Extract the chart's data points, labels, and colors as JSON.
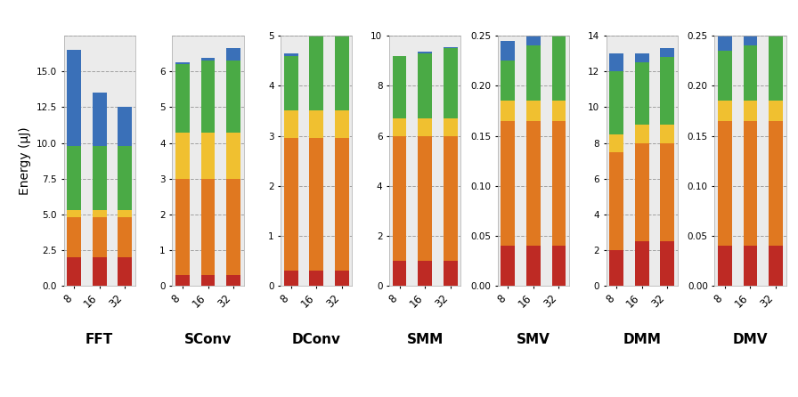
{
  "workloads": [
    "FFT",
    "SConv",
    "DConv",
    "SMM",
    "SMV",
    "DMM",
    "DMV"
  ],
  "x_labels": [
    "8",
    "16",
    "32"
  ],
  "colors": {
    "red": "#be2a24",
    "orange": "#e07820",
    "yellow": "#f0c030",
    "green": "#4aaa45",
    "blue": "#3a70b8"
  },
  "data": {
    "FFT": {
      "red": [
        2.0,
        2.0,
        2.0
      ],
      "orange": [
        2.8,
        2.8,
        2.8
      ],
      "yellow": [
        0.5,
        0.5,
        0.5
      ],
      "green": [
        4.5,
        4.5,
        4.5
      ],
      "blue": [
        6.7,
        3.7,
        2.7
      ]
    },
    "SConv": {
      "red": [
        0.3,
        0.3,
        0.3
      ],
      "orange": [
        2.7,
        2.7,
        2.7
      ],
      "yellow": [
        1.3,
        1.3,
        1.3
      ],
      "green": [
        1.9,
        2.0,
        2.0
      ],
      "blue": [
        0.05,
        0.07,
        0.35
      ]
    },
    "DConv": {
      "red": [
        0.3,
        0.3,
        0.3
      ],
      "orange": [
        2.65,
        2.65,
        2.65
      ],
      "yellow": [
        0.55,
        0.55,
        0.55
      ],
      "green": [
        1.1,
        1.55,
        1.55
      ],
      "blue": [
        0.05,
        0.05,
        0.1
      ]
    },
    "SMM": {
      "red": [
        1.0,
        1.0,
        1.0
      ],
      "orange": [
        5.0,
        5.0,
        5.0
      ],
      "yellow": [
        0.7,
        0.7,
        0.7
      ],
      "green": [
        2.5,
        2.6,
        2.8
      ],
      "blue": [
        0.0,
        0.05,
        0.05
      ]
    },
    "SMV": {
      "red": [
        0.04,
        0.04,
        0.04
      ],
      "orange": [
        0.125,
        0.125,
        0.125
      ],
      "yellow": [
        0.02,
        0.02,
        0.02
      ],
      "green": [
        0.04,
        0.055,
        0.065
      ],
      "blue": [
        0.02,
        0.025,
        0.045
      ]
    },
    "DMM": {
      "red": [
        2.0,
        2.5,
        2.5
      ],
      "orange": [
        5.5,
        5.5,
        5.5
      ],
      "yellow": [
        1.0,
        1.0,
        1.0
      ],
      "green": [
        3.5,
        3.5,
        3.8
      ],
      "blue": [
        1.0,
        0.5,
        0.5
      ]
    },
    "DMV": {
      "red": [
        0.04,
        0.04,
        0.04
      ],
      "orange": [
        0.125,
        0.125,
        0.125
      ],
      "yellow": [
        0.02,
        0.02,
        0.02
      ],
      "green": [
        0.05,
        0.055,
        0.065
      ],
      "blue": [
        0.02,
        0.025,
        0.045
      ]
    }
  },
  "ylims": {
    "FFT": [
      0,
      17.5
    ],
    "SConv": [
      0,
      7.0
    ],
    "DConv": [
      0,
      5.0
    ],
    "SMM": [
      0,
      10.0
    ],
    "SMV": [
      0,
      0.25
    ],
    "DMM": [
      0,
      14.0
    ],
    "DMV": [
      0,
      0.25
    ]
  },
  "yticks": {
    "FFT": [
      0.0,
      2.5,
      5.0,
      7.5,
      10.0,
      12.5,
      15.0
    ],
    "SConv": [
      0,
      1,
      2,
      3,
      4,
      5,
      6
    ],
    "DConv": [
      0,
      1,
      2,
      3,
      4,
      5
    ],
    "SMM": [
      0,
      2,
      4,
      6,
      8,
      10
    ],
    "SMV": [
      0.0,
      0.05,
      0.1,
      0.15,
      0.2,
      0.25
    ],
    "DMM": [
      0,
      2,
      4,
      6,
      8,
      10,
      12,
      14
    ],
    "DMV": [
      0.0,
      0.05,
      0.1,
      0.15,
      0.2,
      0.25
    ]
  },
  "ytick_labels": {
    "FFT": [
      "0.0",
      "2.5",
      "5.0",
      "7.5",
      "10.0",
      "12.5",
      "15.0"
    ],
    "SConv": [
      "0",
      "1",
      "2",
      "3",
      "4",
      "5",
      "6"
    ],
    "DConv": [
      "0",
      "1",
      "2",
      "3",
      "4",
      "5"
    ],
    "SMM": [
      "0",
      "2",
      "4",
      "6",
      "8",
      "10"
    ],
    "SMV": [
      "0.00",
      "0.05",
      "0.10",
      "0.15",
      "0.20",
      "0.25"
    ],
    "DMM": [
      "0",
      "2",
      "4",
      "6",
      "8",
      "10",
      "12",
      "14"
    ],
    "DMV": [
      "0.00",
      "0.05",
      "0.10",
      "0.15",
      "0.20",
      "0.25"
    ]
  },
  "ylabel": "Energy (μJ)",
  "bar_width": 0.55,
  "bg_color": "#ebebeb",
  "grid_color": "#888888",
  "grid_alpha": 0.75
}
